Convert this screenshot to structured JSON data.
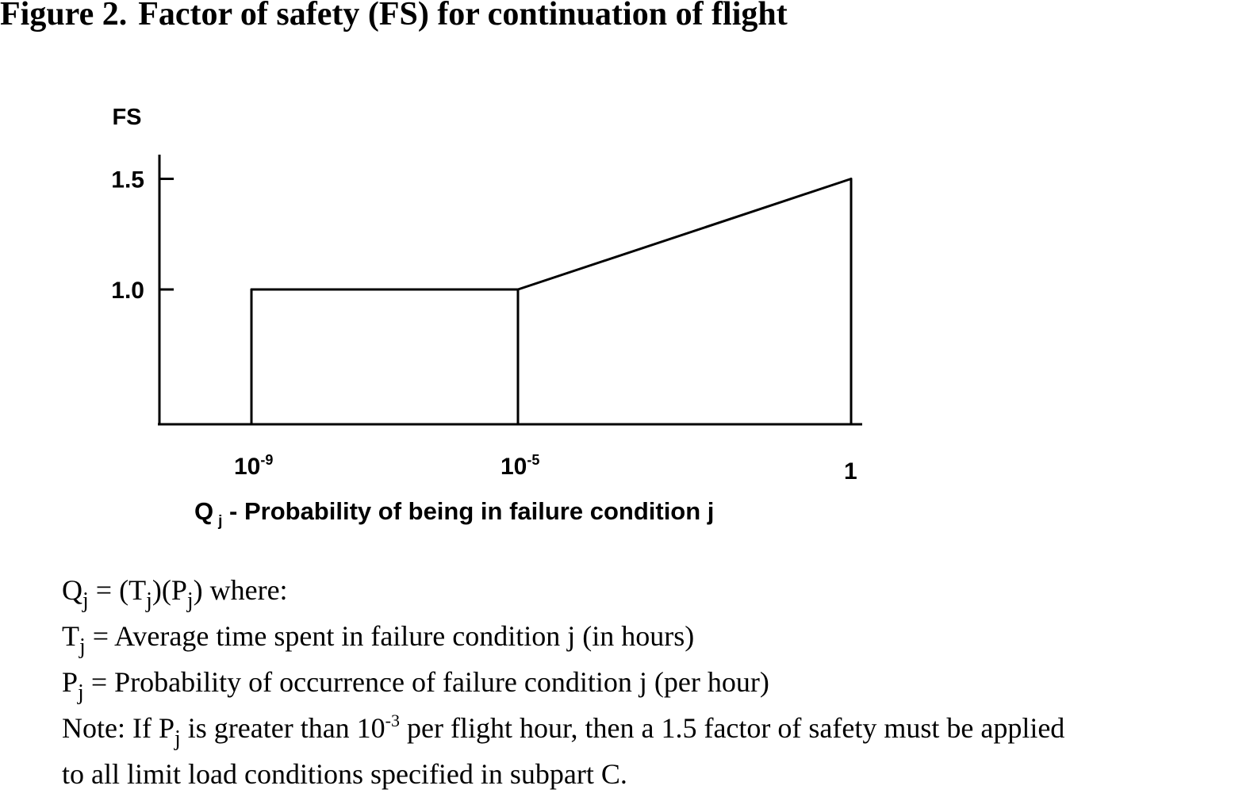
{
  "figure": {
    "label": "Figure 2.",
    "title": "Factor of safety (FS) for continuation of flight"
  },
  "chart_data": {
    "type": "line",
    "ylabel": "FS",
    "xlabel_main": "Q",
    "xlabel_sub": "j",
    "xlabel_rest": " - Probability of being in failure condition j",
    "x_scale": "log",
    "x_ticks": [
      {
        "value": 1e-09,
        "base": "10",
        "exp": "-9"
      },
      {
        "value": 1e-05,
        "base": "10",
        "exp": "-5"
      },
      {
        "value": 1,
        "base": "1",
        "exp": ""
      }
    ],
    "y_ticks": [
      {
        "value": 1.0,
        "label": "1.0"
      },
      {
        "value": 1.5,
        "label": "1.5"
      }
    ],
    "series": [
      {
        "points": [
          {
            "x": 1e-09,
            "y": 1.0
          },
          {
            "x": 1e-05,
            "y": 1.0
          },
          {
            "x": 1,
            "y": 1.5
          }
        ]
      }
    ],
    "grid": false
  },
  "notes": {
    "l1": {
      "a": "Q",
      "s1": "j",
      "b": " = (T",
      "s2": "j",
      "c": ")(P",
      "s3": "j",
      "d": ") where:"
    },
    "l2": {
      "a": "T",
      "s1": "j",
      "b": " = Average time spent in failure condition j (in hours)"
    },
    "l3": {
      "a": "P",
      "s1": "j",
      "b": " = Probability of occurrence of failure condition j (per hour)"
    },
    "l4": {
      "a": "Note:  If P",
      "s1": "j",
      "b": " is greater than 10",
      "sup": "-3",
      "c": " per flight hour, then a 1.5 factor of safety must be applied"
    },
    "l5": {
      "a": "to all limit load conditions specified in subpart C."
    }
  }
}
